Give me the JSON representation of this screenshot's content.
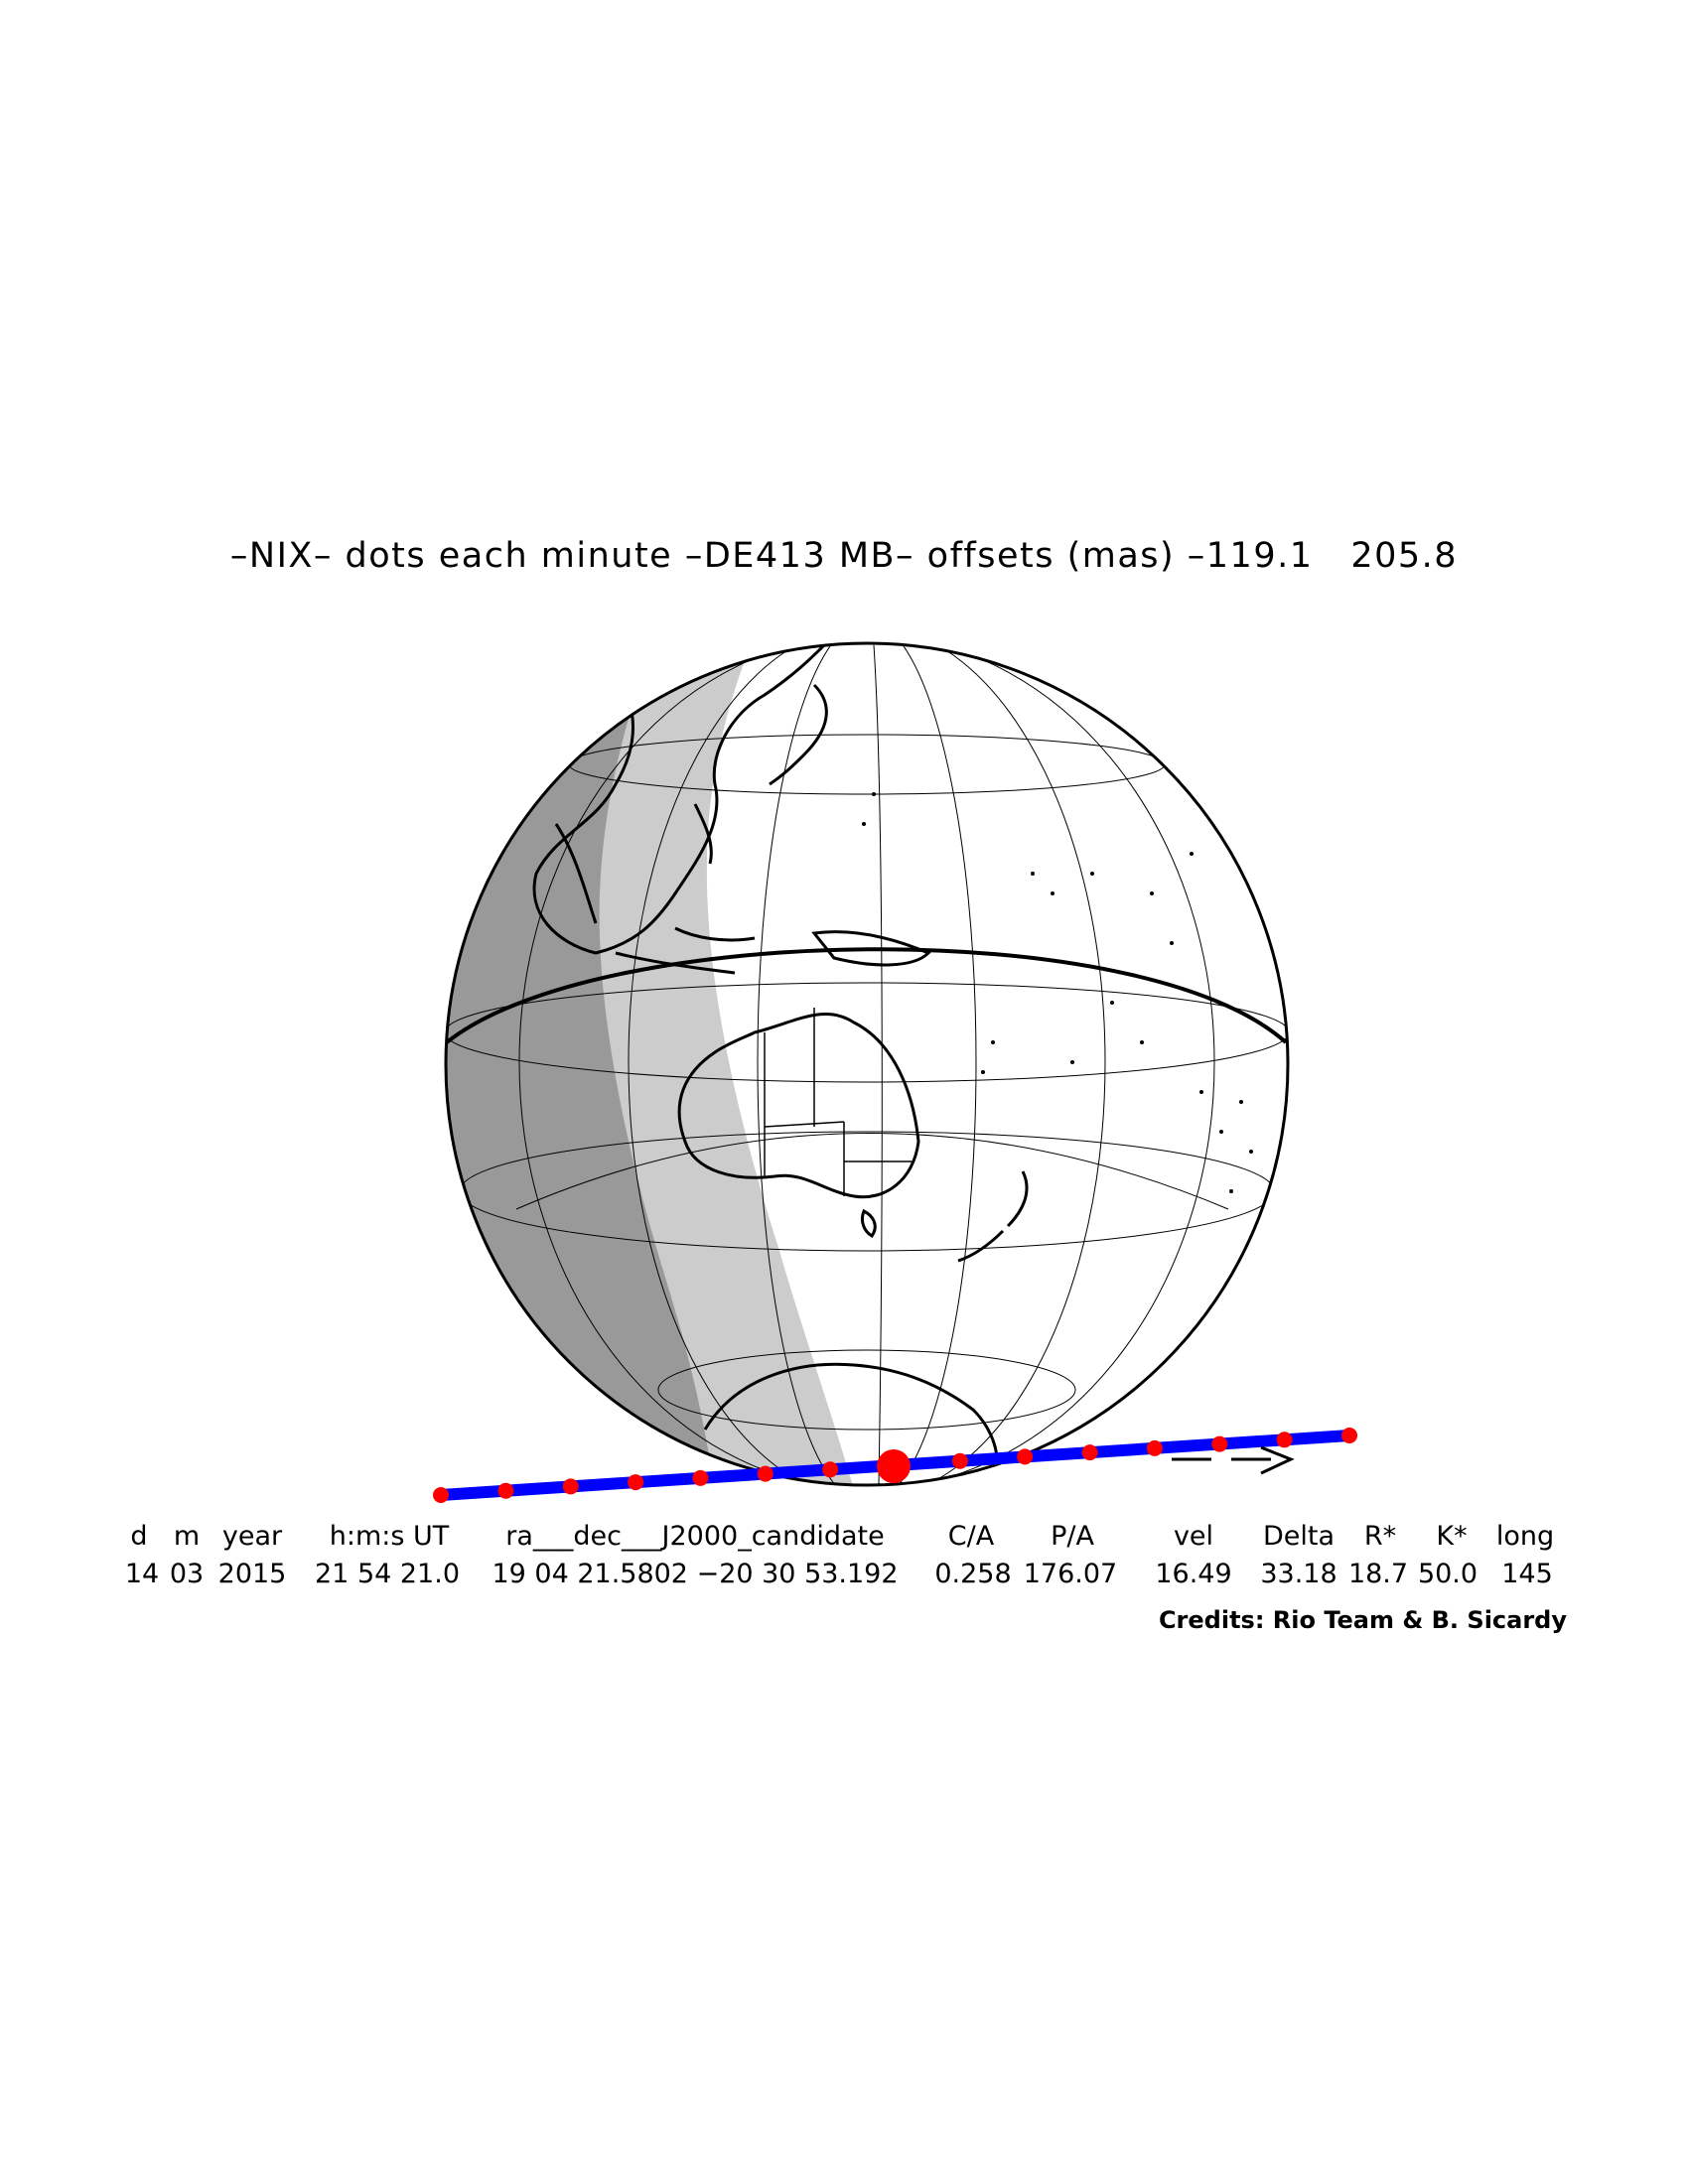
{
  "title": "–NIX– dots each minute –DE413 MB– offsets (mas) –119.1   205.8",
  "header": [
    "d",
    "m",
    "year",
    "h:m:s UT",
    "ra___dec___J2000_candidate",
    "C/A",
    "P/A",
    "vel",
    "Delta",
    "R*",
    "K*",
    "long"
  ],
  "values": [
    "14",
    "03",
    "2015",
    "21 54 21.0",
    "19 04 21.5802 −20 30 53.192",
    "0.258",
    "176.07",
    "16.49",
    "33.18",
    "18.7",
    "50.0",
    "145"
  ],
  "credits": "Credits: Rio Team & B. Sicardy",
  "colors": {
    "night": "#999999",
    "twilight": "#cccccc",
    "day": "#ffffff",
    "path": "#0000ff",
    "dots": "#ff0000"
  },
  "path_dots_count": 15,
  "direction_arrow": "--->"
}
